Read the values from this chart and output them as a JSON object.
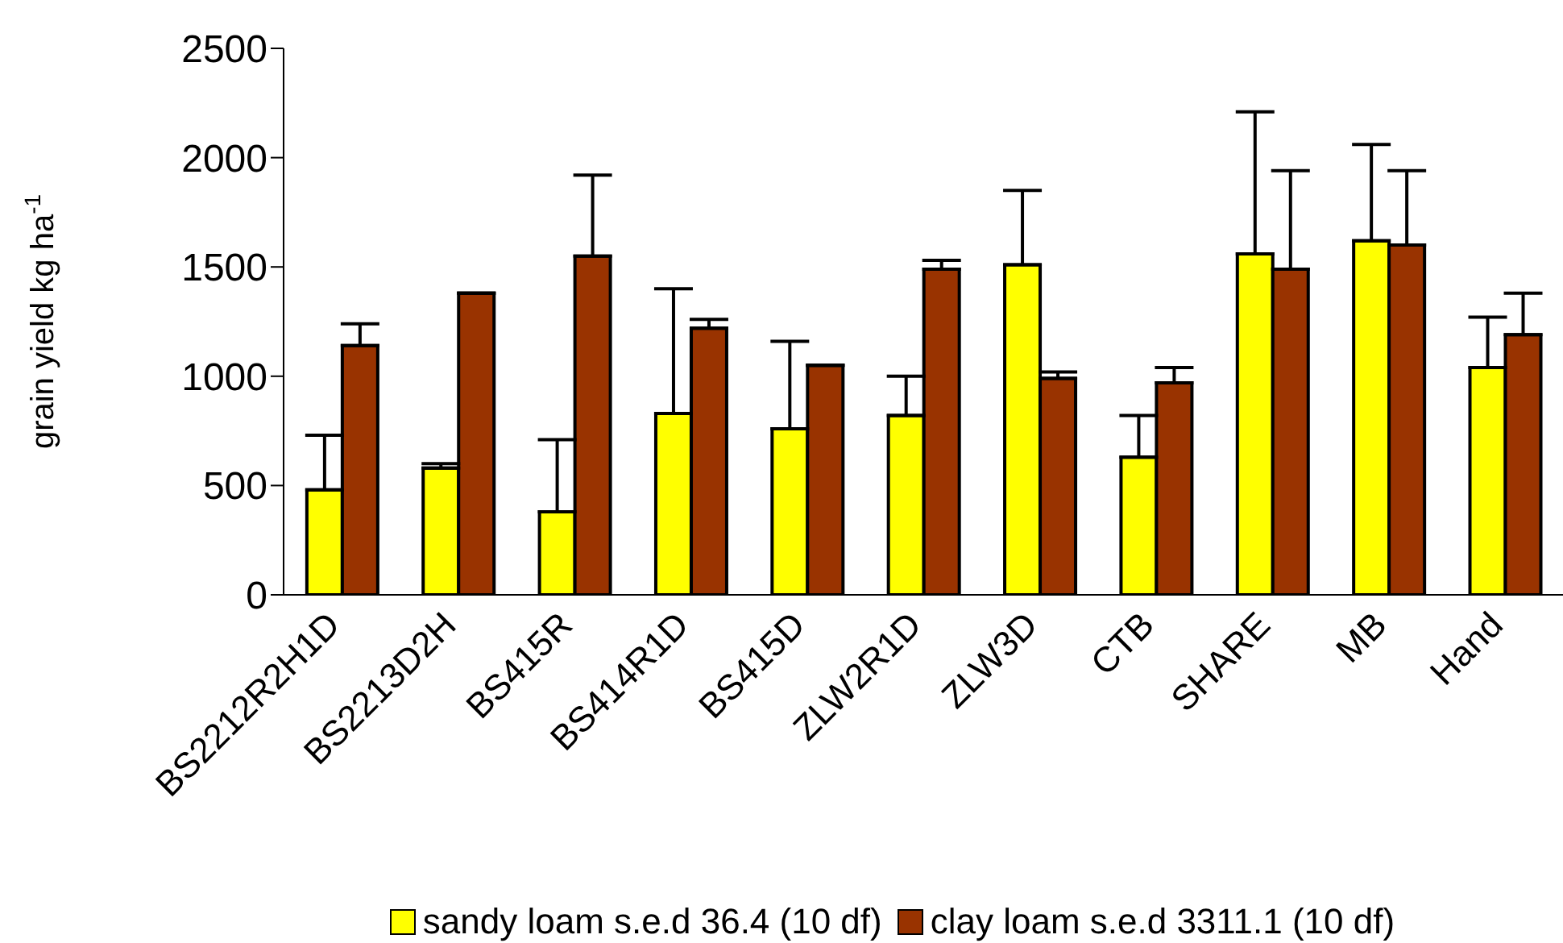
{
  "chart_data": {
    "type": "bar",
    "ylabel": "grain yield kg ha$^{-1}$",
    "categories": [
      "BS2212R2H1D",
      "BS2213D2H",
      "BS415R",
      "BS414R1D",
      "BS415D",
      "ZLW2R1D",
      "ZLW3D",
      "CTB",
      "SHARE",
      "MB",
      "Hand"
    ],
    "series": [
      {
        "name": "sandy loam s.e.d 36.4 (10 df)",
        "color": "#ffff00",
        "values": [
          480,
          580,
          380,
          830,
          760,
          820,
          1510,
          630,
          1560,
          1620,
          1040
        ],
        "errors": [
          [
            480,
            730
          ],
          [
            580,
            600
          ],
          [
            380,
            710
          ],
          [
            830,
            1400
          ],
          [
            760,
            1160
          ],
          [
            820,
            1000
          ],
          [
            1510,
            1850
          ],
          [
            630,
            820
          ],
          [
            1560,
            2210
          ],
          [
            1620,
            2060
          ],
          [
            1040,
            1270
          ]
        ]
      },
      {
        "name": "clay loam s.e.d 3311.1  (10 df)",
        "color": "#993300",
        "values": [
          1140,
          1380,
          1550,
          1220,
          1050,
          1490,
          990,
          970,
          1490,
          1600,
          1190
        ],
        "errors": [
          [
            1140,
            1240
          ],
          [
            1380,
            1380
          ],
          [
            1550,
            1920
          ],
          [
            1220,
            1260
          ],
          [
            1050,
            1050
          ],
          [
            1490,
            1530
          ],
          [
            990,
            1020
          ],
          [
            970,
            1040
          ],
          [
            1490,
            1940
          ],
          [
            1600,
            1940
          ],
          [
            1190,
            1380
          ]
        ]
      }
    ],
    "ylim": [
      0,
      2500
    ],
    "yticks": [
      0,
      500,
      1000,
      1500,
      2000,
      2500
    ],
    "grid": false,
    "legend": "bottom"
  }
}
